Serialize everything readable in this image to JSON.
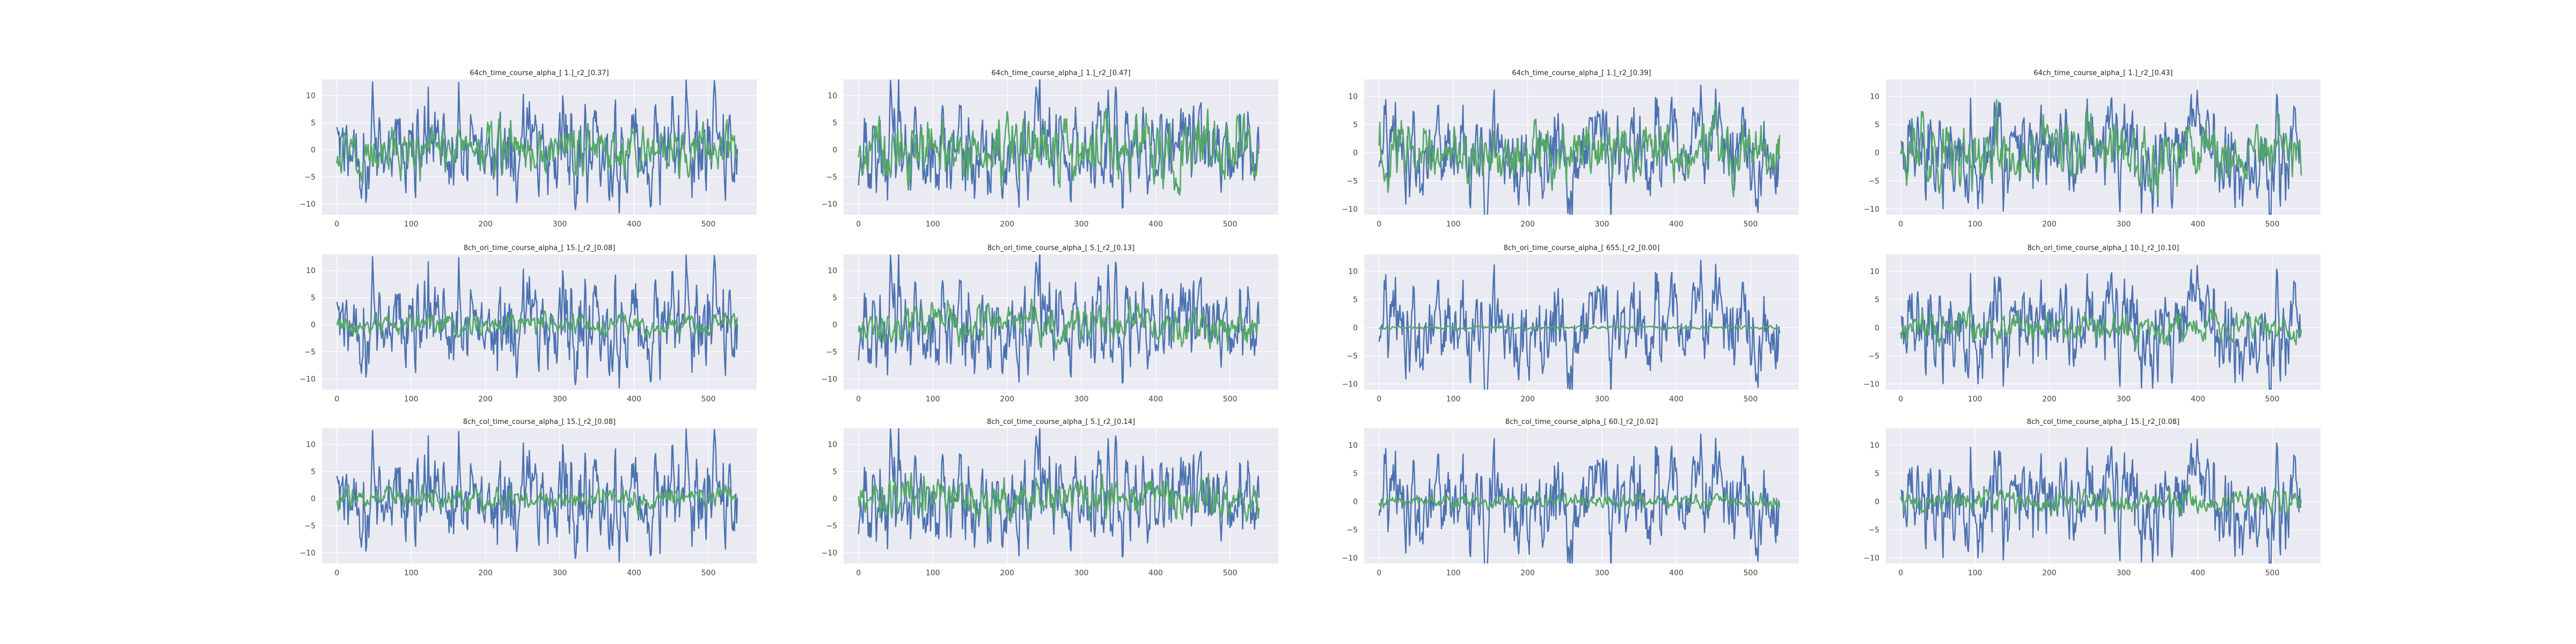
{
  "figure": {
    "background": "#ffffff",
    "axes_facecolor": "#eaeaf2",
    "grid_color": "#ffffff"
  },
  "series_colors": {
    "measured": "#4c72b0",
    "predicted": "#55a868"
  },
  "chart_data": [
    {
      "type": "line",
      "title": "64ch_time_course_alpha_[ 1.]_r2_[0.37]",
      "xlim": [
        -20,
        565
      ],
      "ylim": [
        -12,
        13
      ],
      "xticks": [
        0,
        100,
        200,
        300,
        400,
        500
      ],
      "yticks": [
        -10,
        -5,
        0,
        5,
        10
      ],
      "series": [
        {
          "color": "#4c72b0",
          "amplitude": 4.5,
          "seed": 1
        },
        {
          "color": "#55a868",
          "amplitude": 2.2,
          "seed": 101
        }
      ]
    },
    {
      "type": "line",
      "title": "64ch_time_course_alpha_[ 1.]_r2_[0.47]",
      "xlim": [
        -20,
        565
      ],
      "ylim": [
        -12,
        13
      ],
      "xticks": [
        0,
        100,
        200,
        300,
        400,
        500
      ],
      "yticks": [
        -10,
        -5,
        0,
        5,
        10
      ],
      "series": [
        {
          "color": "#4c72b0",
          "amplitude": 4.5,
          "seed": 2
        },
        {
          "color": "#55a868",
          "amplitude": 3.0,
          "seed": 102
        }
      ]
    },
    {
      "type": "line",
      "title": "64ch_time_course_alpha_[ 1.]_r2_[0.39]",
      "xlim": [
        -20,
        565
      ],
      "ylim": [
        -11,
        13
      ],
      "xticks": [
        0,
        100,
        200,
        300,
        400,
        500
      ],
      "yticks": [
        -10,
        -5,
        0,
        5,
        10
      ],
      "series": [
        {
          "color": "#4c72b0",
          "amplitude": 4.5,
          "seed": 3
        },
        {
          "color": "#55a868",
          "amplitude": 2.5,
          "seed": 103
        }
      ]
    },
    {
      "type": "line",
      "title": "64ch_time_course_alpha_[ 1.]_r2_[0.43]",
      "xlim": [
        -20,
        565
      ],
      "ylim": [
        -11,
        13
      ],
      "xticks": [
        0,
        100,
        200,
        300,
        400,
        500
      ],
      "yticks": [
        -10,
        -5,
        0,
        5,
        10
      ],
      "series": [
        {
          "color": "#4c72b0",
          "amplitude": 4.5,
          "seed": 4
        },
        {
          "color": "#55a868",
          "amplitude": 2.8,
          "seed": 104
        }
      ]
    },
    {
      "type": "line",
      "title": "8ch_ori_time_course_alpha_[ 15.]_r2_[0.08]",
      "xlim": [
        -20,
        565
      ],
      "ylim": [
        -12,
        13
      ],
      "xticks": [
        0,
        100,
        200,
        300,
        400,
        500
      ],
      "yticks": [
        -10,
        -5,
        0,
        5,
        10
      ],
      "series": [
        {
          "color": "#4c72b0",
          "amplitude": 4.5,
          "seed": 1
        },
        {
          "color": "#55a868",
          "amplitude": 1.0,
          "seed": 201
        }
      ]
    },
    {
      "type": "line",
      "title": "8ch_ori_time_course_alpha_[ 5.]_r2_[0.13]",
      "xlim": [
        -20,
        565
      ],
      "ylim": [
        -12,
        13
      ],
      "xticks": [
        0,
        100,
        200,
        300,
        400,
        500
      ],
      "yticks": [
        -10,
        -5,
        0,
        5,
        10
      ],
      "series": [
        {
          "color": "#4c72b0",
          "amplitude": 4.5,
          "seed": 2
        },
        {
          "color": "#55a868",
          "amplitude": 1.8,
          "seed": 202
        }
      ]
    },
    {
      "type": "line",
      "title": "8ch_ori_time_course_alpha_[ 655.]_r2_[0.00]",
      "xlim": [
        -20,
        565
      ],
      "ylim": [
        -11,
        13
      ],
      "xticks": [
        0,
        100,
        200,
        300,
        400,
        500
      ],
      "yticks": [
        -10,
        -5,
        0,
        5,
        10
      ],
      "series": [
        {
          "color": "#4c72b0",
          "amplitude": 4.5,
          "seed": 3
        },
        {
          "color": "#55a868",
          "amplitude": 0.15,
          "seed": 203
        }
      ]
    },
    {
      "type": "line",
      "title": "8ch_ori_time_course_alpha_[ 10.]_r2_[0.10]",
      "xlim": [
        -20,
        565
      ],
      "ylim": [
        -11,
        13
      ],
      "xticks": [
        0,
        100,
        200,
        300,
        400,
        500
      ],
      "yticks": [
        -10,
        -5,
        0,
        5,
        10
      ],
      "series": [
        {
          "color": "#4c72b0",
          "amplitude": 4.5,
          "seed": 4
        },
        {
          "color": "#55a868",
          "amplitude": 1.3,
          "seed": 204
        }
      ]
    },
    {
      "type": "line",
      "title": "8ch_col_time_course_alpha_[ 15.]_r2_[0.08]",
      "xlim": [
        -20,
        565
      ],
      "ylim": [
        -12,
        13
      ],
      "xticks": [
        0,
        100,
        200,
        300,
        400,
        500
      ],
      "yticks": [
        -10,
        -5,
        0,
        5,
        10
      ],
      "series": [
        {
          "color": "#4c72b0",
          "amplitude": 4.5,
          "seed": 1
        },
        {
          "color": "#55a868",
          "amplitude": 1.0,
          "seed": 301
        }
      ]
    },
    {
      "type": "line",
      "title": "8ch_col_time_course_alpha_[ 5.]_r2_[0.14]",
      "xlim": [
        -20,
        565
      ],
      "ylim": [
        -12,
        13
      ],
      "xticks": [
        0,
        100,
        200,
        300,
        400,
        500
      ],
      "yticks": [
        -10,
        -5,
        0,
        5,
        10
      ],
      "series": [
        {
          "color": "#4c72b0",
          "amplitude": 4.5,
          "seed": 2
        },
        {
          "color": "#55a868",
          "amplitude": 1.8,
          "seed": 302
        }
      ]
    },
    {
      "type": "line",
      "title": "8ch_col_time_course_alpha_[ 60.]_r2_[0.02]",
      "xlim": [
        -20,
        565
      ],
      "ylim": [
        -11,
        13
      ],
      "xticks": [
        0,
        100,
        200,
        300,
        400,
        500
      ],
      "yticks": [
        -10,
        -5,
        0,
        5,
        10
      ],
      "series": [
        {
          "color": "#4c72b0",
          "amplitude": 4.5,
          "seed": 3
        },
        {
          "color": "#55a868",
          "amplitude": 0.6,
          "seed": 303
        }
      ]
    },
    {
      "type": "line",
      "title": "8ch_col_time_course_alpha_[ 15.]_r2_[0.08]",
      "xlim": [
        -20,
        565
      ],
      "ylim": [
        -11,
        13
      ],
      "xticks": [
        0,
        100,
        200,
        300,
        400,
        500
      ],
      "yticks": [
        -10,
        -5,
        0,
        5,
        10
      ],
      "series": [
        {
          "color": "#4c72b0",
          "amplitude": 4.5,
          "seed": 4
        },
        {
          "color": "#55a868",
          "amplitude": 1.0,
          "seed": 304
        }
      ]
    }
  ]
}
